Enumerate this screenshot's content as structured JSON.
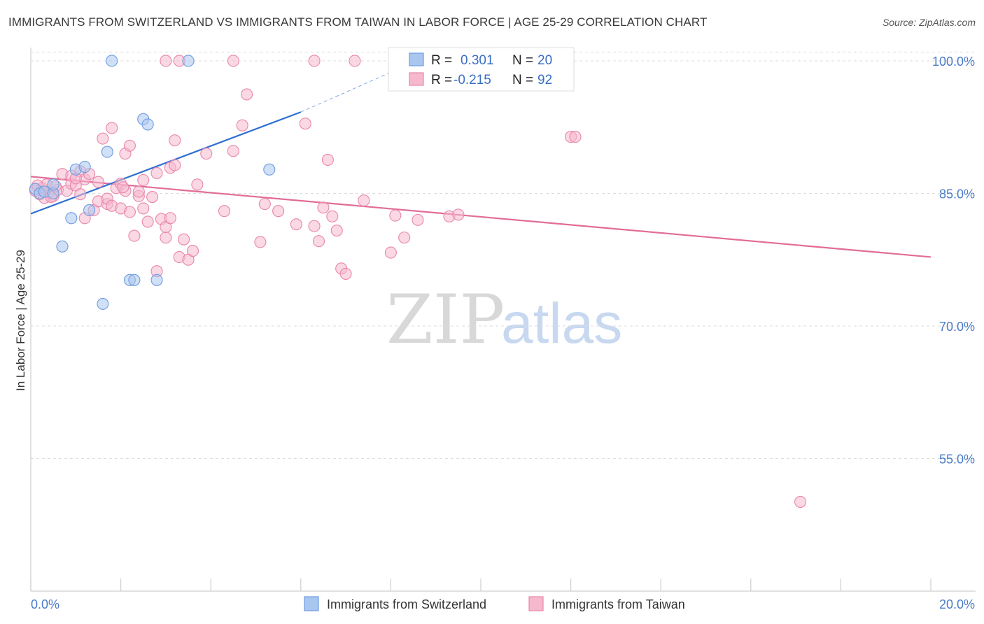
{
  "title": "IMMIGRANTS FROM SWITZERLAND VS IMMIGRANTS FROM TAIWAN IN LABOR FORCE | AGE 25-29 CORRELATION CHART",
  "source": "Source: ZipAtlas.com",
  "watermark": {
    "zip": "ZIP",
    "atlas": "atlas"
  },
  "colors": {
    "blue_fill": "#a9c6ef",
    "blue_stroke": "#6f9be0",
    "blue_line": "#2f6fcf",
    "pink_fill": "#f5b8cd",
    "pink_stroke": "#e987aa",
    "pink_line": "#e26c98",
    "grid": "#dddddd",
    "tick_label": "#4a7bc8"
  },
  "legend": {
    "items": [
      {
        "r_label": "R =",
        "r_value": "0.301",
        "n_label": "N =",
        "n_value": "20"
      },
      {
        "r_label": "R =",
        "r_value": "-0.215",
        "n_label": "N =",
        "n_value": "92"
      }
    ]
  },
  "chart_data": {
    "type": "scatter",
    "title": "IMMIGRANTS FROM SWITZERLAND VS IMMIGRANTS FROM TAIWAN IN LABOR FORCE | AGE 25-29 CORRELATION CHART",
    "xlabel": "",
    "ylabel": "In Labor Force | Age 25-29",
    "xlim": [
      0,
      20
    ],
    "ylim": [
      40,
      101.5
    ],
    "x_tick_labels": [
      "0.0%",
      "20.0%"
    ],
    "y_ticks": [
      55,
      70,
      85,
      100
    ],
    "y_tick_labels": [
      "55.0%",
      "70.0%",
      "85.0%",
      "100.0%"
    ],
    "grid": true,
    "legend_position": "top-center",
    "series": [
      {
        "name": "Immigrants from Switzerland",
        "color": "#a9c6ef",
        "trend": {
          "x": [
            0,
            6.0
          ],
          "y": [
            82.7,
            94.2
          ],
          "dashed_to": [
            8.8,
            100.5
          ]
        },
        "points": [
          [
            0.1,
            85.5
          ],
          [
            0.2,
            85.0
          ],
          [
            0.3,
            85.2
          ],
          [
            0.5,
            85.0
          ],
          [
            0.5,
            86.0
          ],
          [
            0.7,
            79.0
          ],
          [
            0.9,
            82.2
          ],
          [
            1.0,
            87.7
          ],
          [
            1.2,
            88.0
          ],
          [
            1.3,
            83.1
          ],
          [
            1.6,
            72.5
          ],
          [
            1.7,
            89.7
          ],
          [
            1.8,
            100.0
          ],
          [
            2.2,
            75.2
          ],
          [
            2.3,
            75.2
          ],
          [
            2.5,
            93.4
          ],
          [
            2.6,
            92.8
          ],
          [
            2.8,
            75.2
          ],
          [
            3.5,
            100.0
          ],
          [
            5.3,
            87.7
          ]
        ]
      },
      {
        "name": "Immigrants from Taiwan",
        "color": "#f5b8cd",
        "trend": {
          "x": [
            0,
            20
          ],
          "y": [
            86.9,
            77.8
          ]
        },
        "points": [
          [
            0.1,
            85.3
          ],
          [
            0.2,
            84.9
          ],
          [
            0.25,
            85.6
          ],
          [
            0.3,
            84.5
          ],
          [
            0.4,
            85.1
          ],
          [
            0.5,
            84.7
          ],
          [
            0.6,
            85.4
          ],
          [
            0.7,
            87.2
          ],
          [
            0.8,
            85.3
          ],
          [
            0.9,
            86.1
          ],
          [
            0.9,
            87.0
          ],
          [
            1.0,
            85.9
          ],
          [
            1.1,
            87.5
          ],
          [
            1.1,
            84.9
          ],
          [
            1.2,
            82.2
          ],
          [
            1.2,
            86.6
          ],
          [
            1.3,
            87.2
          ],
          [
            1.4,
            83.1
          ],
          [
            1.5,
            86.3
          ],
          [
            1.5,
            84.1
          ],
          [
            1.6,
            91.2
          ],
          [
            1.7,
            83.8
          ],
          [
            1.7,
            84.4
          ],
          [
            1.8,
            83.6
          ],
          [
            1.8,
            92.4
          ],
          [
            1.9,
            85.6
          ],
          [
            2.0,
            83.3
          ],
          [
            2.0,
            86.1
          ],
          [
            2.1,
            85.3
          ],
          [
            2.1,
            89.5
          ],
          [
            2.2,
            82.9
          ],
          [
            2.2,
            90.4
          ],
          [
            2.3,
            80.2
          ],
          [
            2.4,
            84.7
          ],
          [
            2.4,
            85.2
          ],
          [
            2.5,
            83.3
          ],
          [
            2.5,
            86.5
          ],
          [
            2.6,
            81.8
          ],
          [
            2.7,
            84.6
          ],
          [
            2.8,
            87.3
          ],
          [
            2.8,
            76.2
          ],
          [
            2.9,
            82.1
          ],
          [
            3.0,
            80.0
          ],
          [
            3.0,
            81.2
          ],
          [
            3.1,
            87.9
          ],
          [
            3.1,
            82.2
          ],
          [
            3.2,
            91.0
          ],
          [
            3.2,
            88.2
          ],
          [
            3.3,
            77.8
          ],
          [
            3.4,
            79.8
          ],
          [
            3.5,
            77.5
          ],
          [
            3.6,
            78.5
          ],
          [
            3.7,
            86.0
          ],
          [
            3.9,
            89.5
          ],
          [
            4.3,
            83.0
          ],
          [
            4.5,
            89.8
          ],
          [
            4.7,
            92.7
          ],
          [
            4.8,
            96.2
          ],
          [
            5.1,
            79.5
          ],
          [
            5.2,
            83.8
          ],
          [
            5.5,
            83.0
          ],
          [
            5.9,
            81.5
          ],
          [
            6.1,
            92.9
          ],
          [
            6.3,
            81.3
          ],
          [
            6.4,
            79.6
          ],
          [
            6.5,
            83.4
          ],
          [
            6.6,
            88.8
          ],
          [
            6.7,
            82.4
          ],
          [
            6.8,
            80.8
          ],
          [
            6.9,
            76.5
          ],
          [
            7.0,
            75.9
          ],
          [
            7.4,
            84.2
          ],
          [
            8.0,
            78.3
          ],
          [
            8.1,
            82.5
          ],
          [
            8.3,
            80.0
          ],
          [
            8.6,
            82.0
          ],
          [
            9.3,
            82.4
          ],
          [
            9.5,
            82.6
          ],
          [
            3.0,
            100.0
          ],
          [
            3.3,
            100.0
          ],
          [
            4.5,
            100.0
          ],
          [
            6.3,
            100.0
          ],
          [
            7.2,
            100.0
          ],
          [
            12.0,
            91.4
          ],
          [
            12.1,
            91.4
          ],
          [
            17.1,
            50.1
          ],
          [
            0.35,
            86.0
          ],
          [
            0.55,
            85.8
          ],
          [
            1.0,
            86.7
          ],
          [
            2.05,
            85.7
          ],
          [
            0.15,
            85.9
          ],
          [
            0.45,
            84.6
          ]
        ]
      }
    ]
  },
  "bottom_legend": [
    {
      "label": "Immigrants from Switzerland"
    },
    {
      "label": "Immigrants from Taiwan"
    }
  ]
}
